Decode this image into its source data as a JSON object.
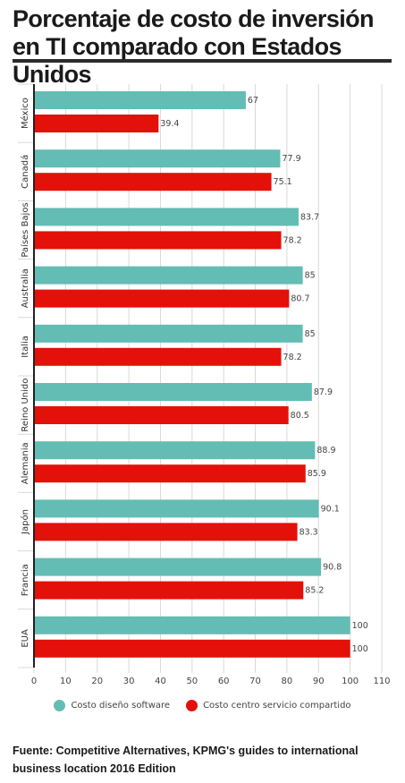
{
  "header": {
    "title": "Porcentaje de costo de inversión en TI comparado con Estados Unidos"
  },
  "colors": {
    "series1": "#63bdb4",
    "series2": "#e3110a",
    "grid": "#d9d9d9",
    "axis": "#222222"
  },
  "chart_data": {
    "type": "bar",
    "orientation": "horizontal",
    "title": "Porcentaje de costo de inversión en TI comparado con Estados Unidos",
    "categories": [
      "México",
      "Canadá",
      "Países Bajos",
      "Australia",
      "Italia",
      "Reino Unido",
      "Alemania",
      "Japón",
      "Francia",
      "EUA"
    ],
    "series": [
      {
        "name": "Costo diseño software",
        "values": [
          67,
          77.9,
          83.7,
          85,
          85,
          87.9,
          88.9,
          90.1,
          90.8,
          100
        ]
      },
      {
        "name": "Costo centro servicio compartido",
        "values": [
          39.4,
          75.1,
          78.2,
          80.7,
          78.2,
          80.5,
          85.9,
          83.3,
          85.2,
          100
        ]
      }
    ],
    "xlim": [
      0,
      110
    ],
    "xticks": [
      0,
      10,
      20,
      30,
      40,
      50,
      60,
      70,
      80,
      90,
      100,
      110
    ],
    "grid": true,
    "legend": "bottom"
  },
  "legend": {
    "items": [
      {
        "label": "Costo diseño software"
      },
      {
        "label": "Costo centro servicio compartido"
      }
    ]
  },
  "footer": {
    "source": "Fuente: Competitive Alternatives, KPMG's guides to international business location 2016 Edition"
  }
}
